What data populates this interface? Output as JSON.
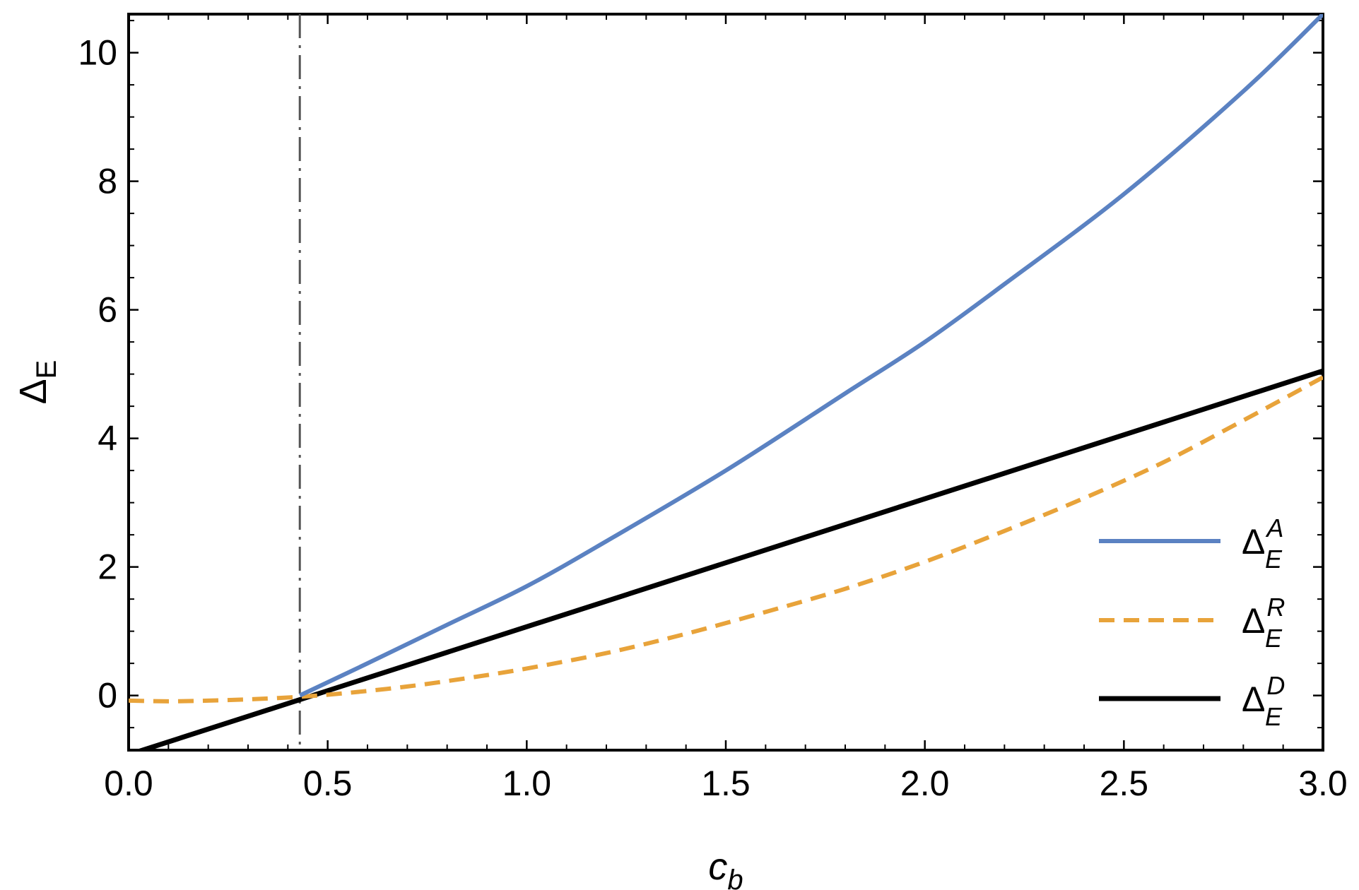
{
  "chart_data": {
    "type": "line",
    "xlabel": "c",
    "xlabel_sub": "b",
    "ylabel": "Δ",
    "ylabel_sub": "E",
    "xlim": [
      0.0,
      3.0
    ],
    "ylim": [
      -0.85,
      10.6
    ],
    "x_ticks": [
      0.0,
      0.5,
      1.0,
      1.5,
      2.0,
      2.5,
      3.0
    ],
    "x_tick_labels": [
      "0.0",
      "0.5",
      "1.0",
      "1.5",
      "2.0",
      "2.5",
      "3.0"
    ],
    "y_ticks": [
      0,
      2,
      4,
      6,
      8,
      10
    ],
    "y_tick_labels": [
      "0",
      "2",
      "4",
      "6",
      "8",
      "10"
    ],
    "grid": false,
    "legend_position": "lower-right",
    "reference_line": {
      "orientation": "vertical",
      "x": 0.43,
      "style": "dashdot",
      "color": "#555555"
    },
    "series": [
      {
        "name": "A",
        "legend_base": "Δ",
        "legend_sub": "E",
        "legend_sup": "A",
        "color": "#5b82c2",
        "style": "solid",
        "x": [
          0.43,
          0.6,
          0.8,
          1.0,
          1.2,
          1.5,
          1.8,
          2.0,
          2.2,
          2.5,
          2.8,
          3.0
        ],
        "y": [
          0.0,
          0.5,
          1.1,
          1.7,
          2.4,
          3.5,
          4.7,
          5.5,
          6.4,
          7.8,
          9.4,
          10.6
        ]
      },
      {
        "name": "R",
        "legend_base": "Δ",
        "legend_sub": "E",
        "legend_sup": "R",
        "color": "#e8a33a",
        "style": "dashed",
        "x": [
          0.0,
          0.1,
          0.2,
          0.3,
          0.43,
          0.55,
          0.7,
          0.85,
          1.0,
          1.2,
          1.4,
          1.6,
          1.8,
          2.0,
          2.2,
          2.4,
          2.6,
          2.8,
          3.0
        ],
        "y": [
          -0.08,
          -0.09,
          -0.08,
          -0.06,
          -0.02,
          0.04,
          0.14,
          0.27,
          0.42,
          0.66,
          0.96,
          1.3,
          1.66,
          2.08,
          2.56,
          3.07,
          3.63,
          4.28,
          4.95
        ]
      },
      {
        "name": "D",
        "legend_base": "Δ",
        "legend_sub": "E",
        "legend_sup": "D",
        "color": "#000000",
        "style": "solid",
        "x": [
          0.0,
          3.0
        ],
        "y": [
          -0.92,
          5.05
        ]
      }
    ]
  }
}
